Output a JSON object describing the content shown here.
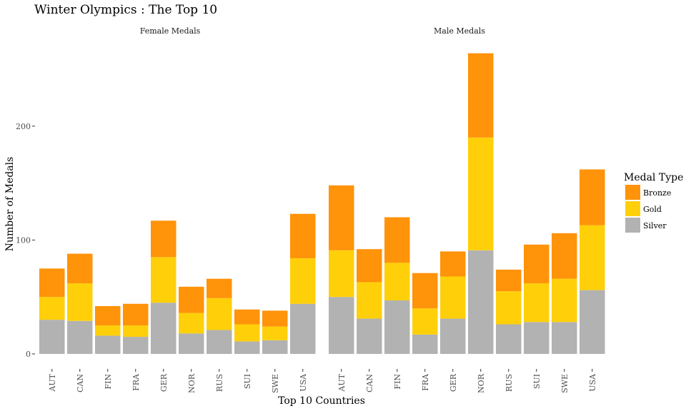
{
  "chart_data": {
    "type": "bar",
    "stacked": true,
    "title": "Winter Olympics : The Top 10",
    "xlabel": "Top 10 Countries",
    "ylabel": "Number of Medals",
    "ylim": [
      0,
      265
    ],
    "yticks": [
      0,
      100,
      200
    ],
    "grid": false,
    "legend": {
      "title": "Medal Type",
      "placement": "right",
      "entries": [
        "Bronze",
        "Gold",
        "Silver"
      ]
    },
    "colors": {
      "Bronze": "#FF9309",
      "Gold": "#FFD009",
      "Silver": "#B2B2B2"
    },
    "categories": [
      "AUT",
      "CAN",
      "FIN",
      "FRA",
      "GER",
      "NOR",
      "RUS",
      "SUI",
      "SWE",
      "USA"
    ],
    "facets": [
      {
        "label": "Female Medals",
        "series": [
          {
            "name": "Silver",
            "values": [
              30,
              29,
              16,
              15,
              45,
              18,
              21,
              11,
              12,
              44
            ]
          },
          {
            "name": "Gold",
            "values": [
              20,
              33,
              9,
              10,
              40,
              18,
              28,
              15,
              12,
              40
            ]
          },
          {
            "name": "Bronze",
            "values": [
              25,
              26,
              17,
              19,
              32,
              23,
              17,
              13,
              14,
              39
            ]
          }
        ]
      },
      {
        "label": "Male Medals",
        "series": [
          {
            "name": "Silver",
            "values": [
              50,
              31,
              47,
              17,
              31,
              91,
              26,
              28,
              28,
              56
            ]
          },
          {
            "name": "Gold",
            "values": [
              41,
              32,
              33,
              23,
              37,
              99,
              29,
              34,
              38,
              57
            ]
          },
          {
            "name": "Bronze",
            "values": [
              57,
              29,
              40,
              31,
              22,
              74,
              19,
              34,
              40,
              49
            ]
          }
        ]
      }
    ]
  }
}
